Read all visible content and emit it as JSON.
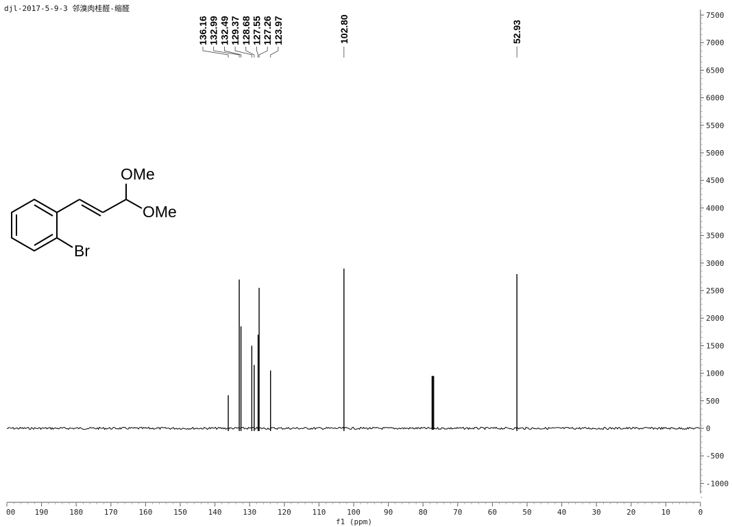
{
  "chart_data": {
    "type": "line",
    "title": "djl-2017-5-9-3 邻溴肉桂醛-缩醛",
    "xlabel": "f1 (ppm)",
    "ylabel": "",
    "xlim": [
      200,
      0
    ],
    "ylim": [
      -1300,
      7500
    ],
    "x_ticks": [
      "190",
      "180",
      "170",
      "160",
      "150",
      "140",
      "130",
      "120",
      "110",
      "100",
      "90",
      "80",
      "70",
      "60",
      "50",
      "40",
      "30",
      "20",
      "10",
      "0"
    ],
    "x_edge_tick": "00",
    "y_ticks": [
      "7500",
      "7000",
      "6500",
      "6000",
      "5500",
      "5000",
      "4500",
      "4000",
      "3500",
      "3000",
      "2500",
      "2000",
      "1500",
      "1000",
      "500",
      "0",
      "-500",
      "-1000"
    ],
    "peaks": [
      {
        "ppm": 136.16,
        "intensity": 600
      },
      {
        "ppm": 132.99,
        "intensity": 2700
      },
      {
        "ppm": 132.49,
        "intensity": 1850
      },
      {
        "ppm": 129.37,
        "intensity": 1500
      },
      {
        "ppm": 128.68,
        "intensity": 1150
      },
      {
        "ppm": 127.55,
        "intensity": 1700
      },
      {
        "ppm": 127.26,
        "intensity": 2550
      },
      {
        "ppm": 123.97,
        "intensity": 1050
      },
      {
        "ppm": 102.8,
        "intensity": 2900
      },
      {
        "ppm": 77.16,
        "intensity": 950
      },
      {
        "ppm": 52.93,
        "intensity": 2800
      }
    ],
    "peak_labels_group1": [
      "136.16",
      "132.99",
      "132.49",
      "129.37",
      "128.68",
      "127.55",
      "127.26",
      "123.97"
    ],
    "peak_labels_single": [
      "102.80",
      "52.93"
    ],
    "molecule": {
      "labels": [
        "OMe",
        "OMe",
        "Br"
      ]
    }
  }
}
